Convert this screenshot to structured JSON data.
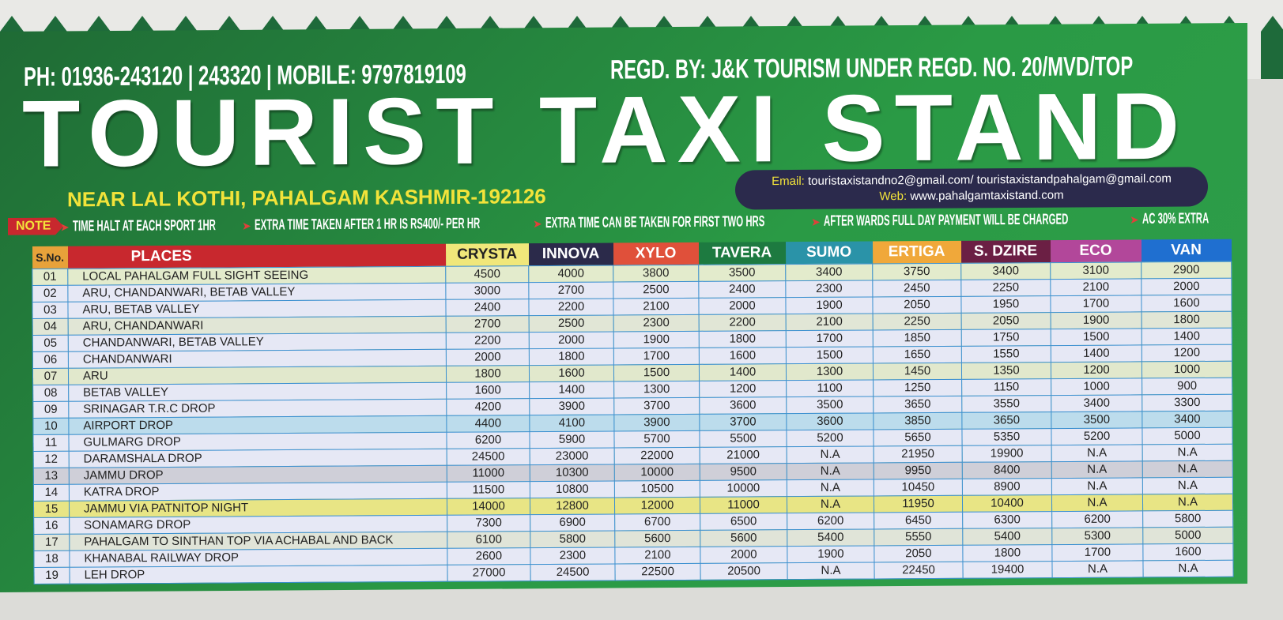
{
  "header": {
    "phone": "PH: 01936-243120 | 243320 | MOBILE: 9797819109",
    "registration": "REGD. BY: J&K TOURISM UNDER REGD. NO. 20/MVD/TOP",
    "title": "TOURIST TAXI STAND",
    "address": "NEAR LAL KOTHI, PAHALGAM KASHMIR-192126",
    "email_label": "Email:",
    "email": "touristaxistandno2@gmail.com/ touristaxistandpahalgam@gmail.com",
    "web_label": "Web:",
    "web": "www.pahalgamtaxistand.com"
  },
  "notes": {
    "tag": "NOTE",
    "items": [
      "TIME HALT AT EACH SPORT 1HR",
      "EXTRA TIME TAKEN AFTER 1 HR IS RS400/- PER HR",
      "EXTRA TIME CAN BE TAKEN FOR FIRST TWO HRS",
      "AFTER WARDS FULL DAY PAYMENT WILL BE CHARGED",
      "AC 30% EXTRA"
    ]
  },
  "table": {
    "columns": [
      {
        "label": "S.No.",
        "color": "#e8a23a",
        "text": "#222"
      },
      {
        "label": "PLACES",
        "color": "#c8282e",
        "text": "#fff"
      },
      {
        "label": "CRYSTA",
        "color": "#f0e77a",
        "text": "#222"
      },
      {
        "label": "INNOVA",
        "color": "#2b2a4a",
        "text": "#fff"
      },
      {
        "label": "XYLO",
        "color": "#e0503a",
        "text": "#fff"
      },
      {
        "label": "TAVERA",
        "color": "#1d7a40",
        "text": "#fff"
      },
      {
        "label": "SUMO",
        "color": "#2a93a8",
        "text": "#fff"
      },
      {
        "label": "ERTIGA",
        "color": "#f0a83a",
        "text": "#fff"
      },
      {
        "label": "S. DZIRE",
        "color": "#6b1f44",
        "text": "#fff"
      },
      {
        "label": "ECO",
        "color": "#b2479a",
        "text": "#fff"
      },
      {
        "label": "VAN",
        "color": "#1f6fd0",
        "text": "#fff"
      }
    ],
    "rows": [
      {
        "sno": "01",
        "place": "LOCAL PAHALGAM FULL SIGHT SEEING",
        "prices": [
          "4500",
          "4000",
          "3800",
          "3500",
          "3400",
          "3750",
          "3400",
          "3100",
          "2900"
        ],
        "bg": "#e3ebcc"
      },
      {
        "sno": "02",
        "place": "ARU, CHANDANWARI, BETAB VALLEY",
        "prices": [
          "3000",
          "2700",
          "2500",
          "2400",
          "2300",
          "2450",
          "2250",
          "2100",
          "2000"
        ],
        "bg": "#e6e8f5"
      },
      {
        "sno": "03",
        "place": "ARU, BETAB VALLEY",
        "prices": [
          "2400",
          "2200",
          "2100",
          "2000",
          "1900",
          "2050",
          "1950",
          "1700",
          "1600"
        ],
        "bg": "#e6e8f5"
      },
      {
        "sno": "04",
        "place": "ARU, CHANDANWARI",
        "prices": [
          "2700",
          "2500",
          "2300",
          "2200",
          "2100",
          "2250",
          "2050",
          "1900",
          "1800"
        ],
        "bg": "#e1e6d6"
      },
      {
        "sno": "05",
        "place": "CHANDANWARI, BETAB VALLEY",
        "prices": [
          "2200",
          "2000",
          "1900",
          "1800",
          "1700",
          "1850",
          "1750",
          "1500",
          "1400"
        ],
        "bg": "#e6e8f5"
      },
      {
        "sno": "06",
        "place": "CHANDANWARI",
        "prices": [
          "2000",
          "1800",
          "1700",
          "1600",
          "1500",
          "1650",
          "1550",
          "1400",
          "1200"
        ],
        "bg": "#e6e8f5"
      },
      {
        "sno": "07",
        "place": "ARU",
        "prices": [
          "1800",
          "1600",
          "1500",
          "1400",
          "1300",
          "1450",
          "1350",
          "1200",
          "1000"
        ],
        "bg": "#e1e8cc"
      },
      {
        "sno": "08",
        "place": "BETAB VALLEY",
        "prices": [
          "1600",
          "1400",
          "1300",
          "1200",
          "1100",
          "1250",
          "1150",
          "1000",
          "900"
        ],
        "bg": "#e6e8f5"
      },
      {
        "sno": "09",
        "place": "SRINAGAR T.R.C DROP",
        "prices": [
          "4200",
          "3900",
          "3700",
          "3600",
          "3500",
          "3650",
          "3550",
          "3400",
          "3300"
        ],
        "bg": "#e6e8f5"
      },
      {
        "sno": "10",
        "place": "AIRPORT DROP",
        "prices": [
          "4400",
          "4100",
          "3900",
          "3700",
          "3600",
          "3850",
          "3650",
          "3500",
          "3400"
        ],
        "bg": "#bcdcec"
      },
      {
        "sno": "11",
        "place": "GULMARG DROP",
        "prices": [
          "6200",
          "5900",
          "5700",
          "5500",
          "5200",
          "5650",
          "5350",
          "5200",
          "5000"
        ],
        "bg": "#e6e8f5"
      },
      {
        "sno": "12",
        "place": "DARAMSHALA DROP",
        "prices": [
          "24500",
          "23000",
          "22000",
          "21000",
          "N.A",
          "21950",
          "19900",
          "N.A",
          "N.A"
        ],
        "bg": "#e6e8f5"
      },
      {
        "sno": "13",
        "place": "JAMMU DROP",
        "prices": [
          "11000",
          "10300",
          "10000",
          "9500",
          "N.A",
          "9950",
          "8400",
          "N.A",
          "N.A"
        ],
        "bg": "#cfcfd8"
      },
      {
        "sno": "14",
        "place": "KATRA DROP",
        "prices": [
          "11500",
          "10800",
          "10500",
          "10000",
          "N.A",
          "10450",
          "8900",
          "N.A",
          "N.A"
        ],
        "bg": "#e6e8f5"
      },
      {
        "sno": "15",
        "place": "JAMMU VIA PATNITOP NIGHT",
        "prices": [
          "14000",
          "12800",
          "12000",
          "11000",
          "N.A",
          "11950",
          "10400",
          "N.A",
          "N.A"
        ],
        "bg": "#e8e585"
      },
      {
        "sno": "16",
        "place": "SONAMARG DROP",
        "prices": [
          "7300",
          "6900",
          "6700",
          "6500",
          "6200",
          "6450",
          "6300",
          "6200",
          "5800"
        ],
        "bg": "#e6e8f5"
      },
      {
        "sno": "17",
        "place": "PAHALGAM TO SINTHAN TOP VIA ACHABAL AND BACK",
        "prices": [
          "6100",
          "5800",
          "5600",
          "5600",
          "5400",
          "5550",
          "5400",
          "5300",
          "5000"
        ],
        "bg": "#e0e4d8"
      },
      {
        "sno": "18",
        "place": "KHANABAL RAILWAY DROP",
        "prices": [
          "2600",
          "2300",
          "2100",
          "2000",
          "1900",
          "2050",
          "1800",
          "1700",
          "1600"
        ],
        "bg": "#e6e8f5"
      },
      {
        "sno": "19",
        "place": "LEH DROP",
        "prices": [
          "27000",
          "24500",
          "22500",
          "20500",
          "N.A",
          "22450",
          "19400",
          "N.A",
          "N.A"
        ],
        "bg": "#e6e8f5"
      }
    ]
  }
}
